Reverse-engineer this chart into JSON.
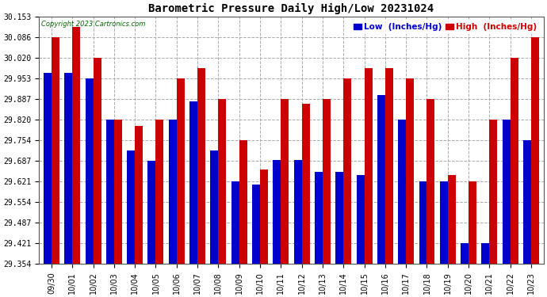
{
  "title": "Barometric Pressure Daily High/Low 20231024",
  "copyright": "Copyright 2023 Cartronics.com",
  "legend_low": "Low  (Inches/Hg)",
  "legend_high": "High  (Inches/Hg)",
  "dates": [
    "09/30",
    "10/01",
    "10/02",
    "10/03",
    "10/04",
    "10/05",
    "10/06",
    "10/07",
    "10/08",
    "10/09",
    "10/10",
    "10/11",
    "10/12",
    "10/13",
    "10/14",
    "10/15",
    "10/16",
    "10/17",
    "10/18",
    "10/19",
    "10/20",
    "10/21",
    "10/22",
    "10/23"
  ],
  "low_values": [
    29.97,
    29.97,
    29.953,
    29.82,
    29.72,
    29.687,
    29.82,
    29.88,
    29.72,
    29.62,
    29.61,
    29.69,
    29.69,
    29.65,
    29.65,
    29.64,
    29.9,
    29.82,
    29.621,
    29.621,
    29.421,
    29.421,
    29.821,
    29.754
  ],
  "high_values": [
    30.086,
    30.12,
    30.02,
    29.82,
    29.8,
    29.82,
    29.953,
    29.986,
    29.887,
    29.754,
    29.66,
    29.887,
    29.87,
    29.887,
    29.953,
    29.987,
    29.987,
    29.953,
    29.887,
    29.64,
    29.621,
    29.821,
    30.02,
    30.086
  ],
  "ylim_min": 29.354,
  "ylim_max": 30.153,
  "yticks": [
    29.354,
    29.421,
    29.487,
    29.554,
    29.621,
    29.687,
    29.754,
    29.82,
    29.887,
    29.953,
    30.02,
    30.086,
    30.153
  ],
  "bar_width": 0.38,
  "low_color": "#0000cc",
  "high_color": "#cc0000",
  "bg_color": "#ffffff",
  "grid_color": "#aaaaaa",
  "title_fontsize": 10,
  "tick_fontsize": 7,
  "legend_fontsize": 7.5
}
